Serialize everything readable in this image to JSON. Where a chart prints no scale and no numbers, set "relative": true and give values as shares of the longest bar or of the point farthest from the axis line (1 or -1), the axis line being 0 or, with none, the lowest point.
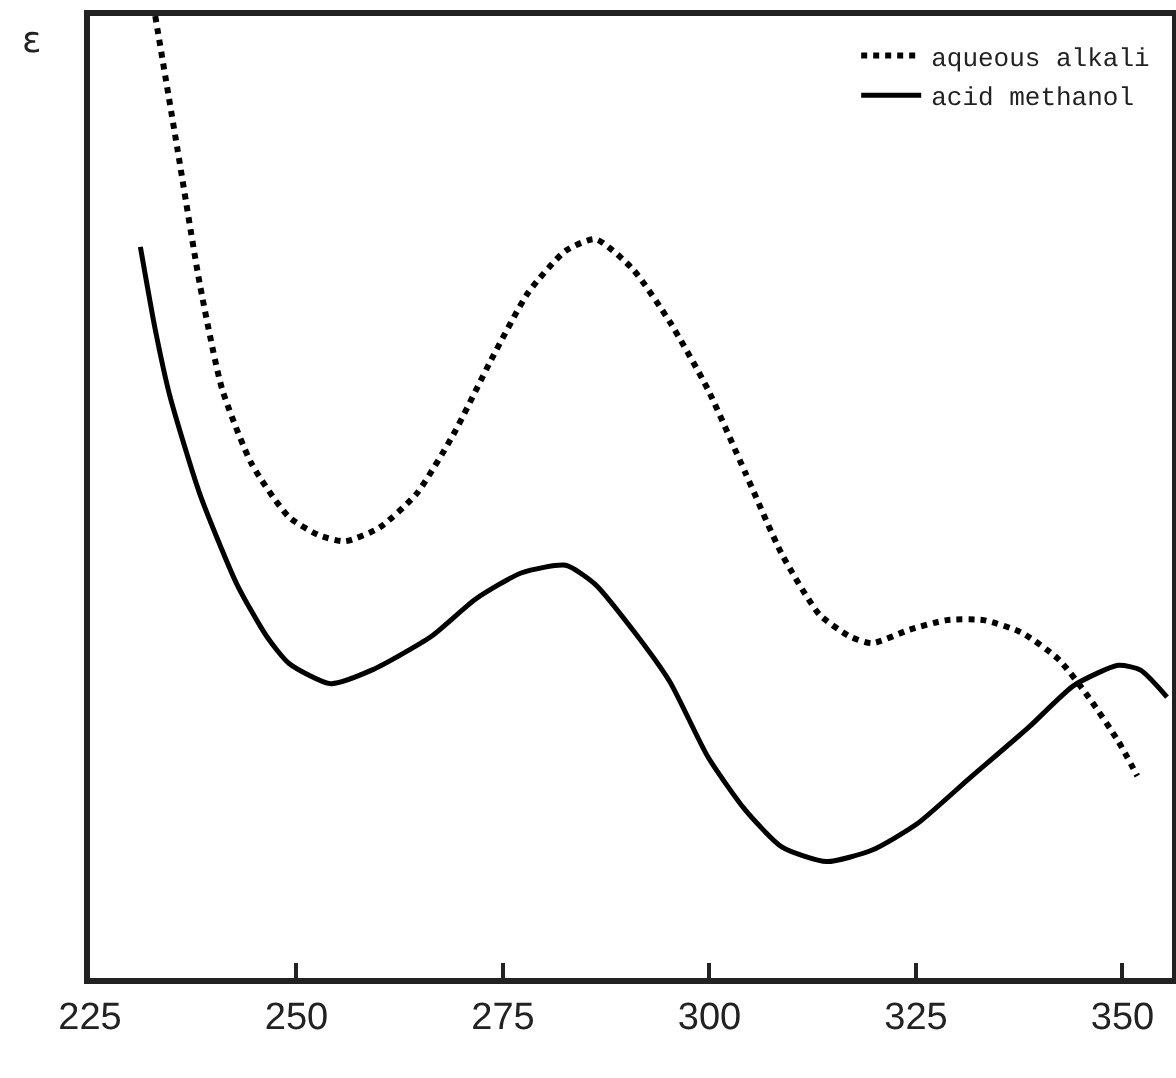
{
  "chart_data": {
    "type": "line",
    "relative": true,
    "ylabel": "ε",
    "legend": "top right",
    "marker": "none",
    "grid": false,
    "xlim": [
      225,
      356
    ],
    "xticks": [
      225,
      250,
      275,
      300,
      325,
      350
    ],
    "series": [
      {
        "name": "aqueous alkali",
        "color": "#000000",
        "line_style": "dotted",
        "x": [
          232.9,
          235.6,
          238.3,
          241.0,
          244.6,
          249.1,
          252.8,
          255.9,
          260.0,
          264.5,
          269.0,
          273.6,
          278.1,
          282.6,
          286.2,
          290.7,
          295.2,
          299.8,
          304.3,
          308.8,
          313.3,
          317.0,
          319.7,
          324.2,
          328.7,
          333.2,
          337.8,
          342.3,
          345.9,
          349.5,
          351.8
        ],
        "values": [
          1.0,
          0.861,
          0.721,
          0.612,
          0.534,
          0.479,
          0.46,
          0.454,
          0.468,
          0.503,
          0.565,
          0.643,
          0.713,
          0.756,
          0.768,
          0.737,
          0.682,
          0.612,
          0.526,
          0.44,
          0.378,
          0.355,
          0.348,
          0.362,
          0.372,
          0.372,
          0.359,
          0.331,
          0.292,
          0.246,
          0.21
        ]
      },
      {
        "name": "acid methanol",
        "color": "#000000",
        "line_style": "solid",
        "x": [
          231.1,
          232.9,
          234.7,
          238.3,
          242.8,
          246.4,
          249.1,
          254.1,
          259.1,
          266.3,
          271.7,
          277.2,
          282.6,
          286.2,
          290.7,
          295.2,
          299.8,
          304.3,
          308.8,
          314.2,
          319.7,
          325.1,
          331.4,
          338.7,
          344.1,
          349.5,
          352.2,
          355.4
        ],
        "values": [
          0.76,
          0.674,
          0.604,
          0.503,
          0.409,
          0.355,
          0.327,
          0.306,
          0.32,
          0.355,
          0.394,
          0.421,
          0.429,
          0.409,
          0.362,
          0.308,
          0.23,
          0.175,
          0.136,
          0.121,
          0.133,
          0.16,
          0.207,
          0.261,
          0.304,
          0.325,
          0.32,
          0.292
        ]
      }
    ]
  }
}
